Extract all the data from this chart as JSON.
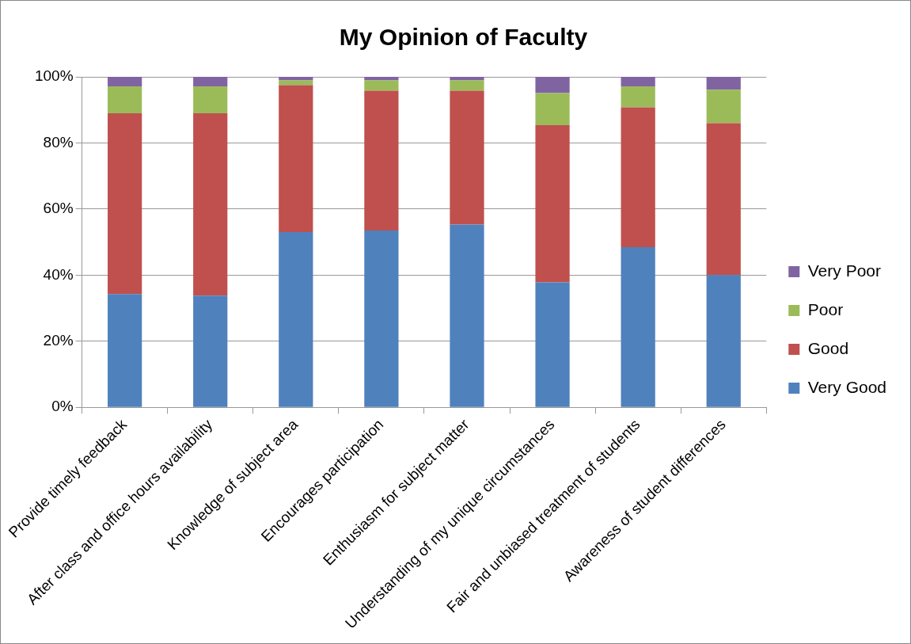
{
  "chart_data": {
    "type": "bar",
    "title": "My Opinion of Faculty",
    "stacked": true,
    "categories": [
      "Provide timely feedback",
      "After class and office hours availability",
      "Knowledge of subject area",
      "Encourages participation",
      "Enthusiasm for subject matter",
      "Understanding of my unique circumstances",
      "Fair and unbiased treatment of students",
      "Awareness of student differences"
    ],
    "series": [
      {
        "name": "Very Good",
        "color": "#4f81bd",
        "values": [
          34.3,
          33.8,
          53.0,
          53.5,
          55.3,
          37.8,
          48.5,
          40.0
        ]
      },
      {
        "name": "Good",
        "color": "#c0504d",
        "values": [
          54.7,
          55.2,
          44.5,
          42.3,
          40.5,
          47.6,
          42.3,
          46.0
        ]
      },
      {
        "name": "Poor",
        "color": "#9bbb59",
        "values": [
          8.1,
          8.1,
          1.4,
          3.1,
          3.1,
          9.7,
          6.3,
          10.1
        ]
      },
      {
        "name": "Very Poor",
        "color": "#8064a2",
        "values": [
          2.9,
          2.9,
          1.1,
          1.1,
          1.1,
          4.9,
          2.9,
          3.9
        ]
      }
    ],
    "ylim": [
      0,
      100
    ],
    "yticks": [
      {
        "value": 0,
        "label": "0%"
      },
      {
        "value": 20,
        "label": "20%"
      },
      {
        "value": 40,
        "label": "40%"
      },
      {
        "value": 60,
        "label": "60%"
      },
      {
        "value": 80,
        "label": "80%"
      },
      {
        "value": 100,
        "label": "100%"
      }
    ],
    "grid": "y",
    "legend": "right"
  }
}
